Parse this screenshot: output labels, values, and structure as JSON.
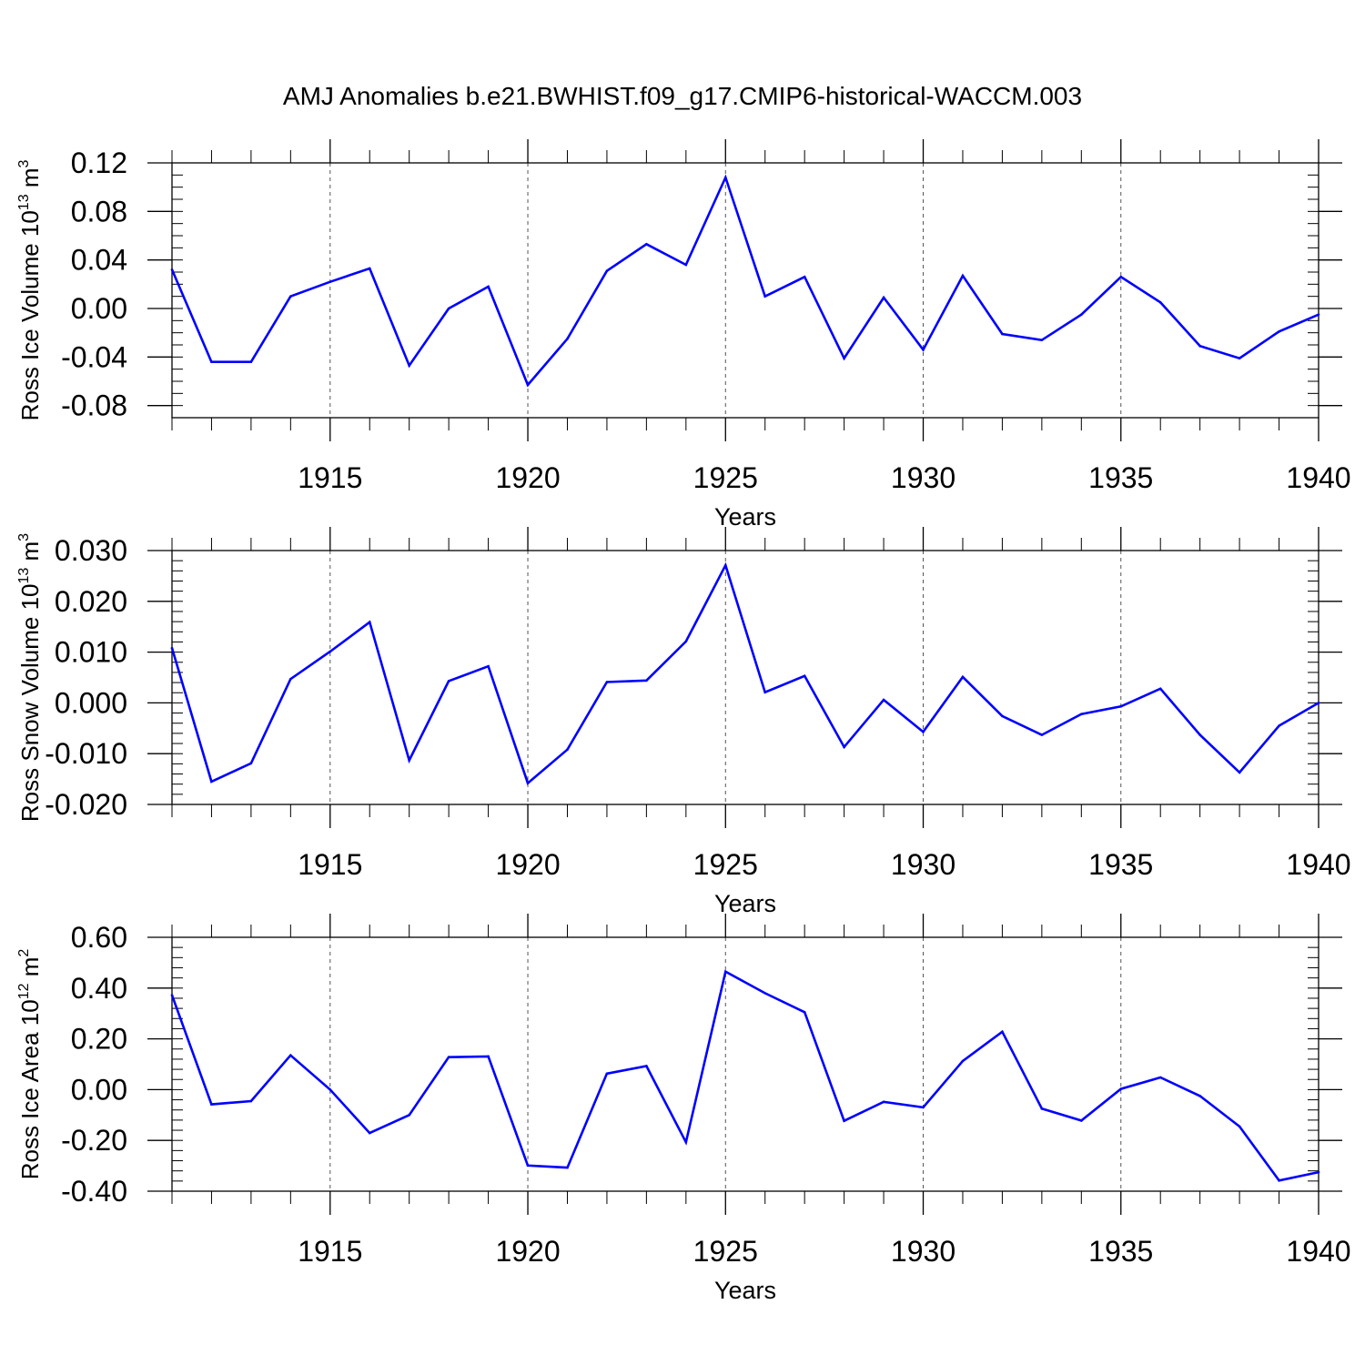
{
  "title": "AMJ Anomalies b.e21.BWHIST.f09_g17.CMIP6-historical-WACCM.003",
  "line_color": "#0000ff",
  "chart_data": [
    {
      "type": "line",
      "xlabel": "Years",
      "ylabel": "Ross Ice Volume 10^13 m^3",
      "ylabel_parts": {
        "base": "Ross Ice Volume 10",
        "exp": "13",
        "unit": " m",
        "unit_exp": "3"
      },
      "xlim": [
        1911,
        1940
      ],
      "ylim": [
        -0.09,
        0.12
      ],
      "x_ticks": [
        1915,
        1920,
        1925,
        1930,
        1935,
        1940
      ],
      "x_tick_labels": [
        "1915",
        "1920",
        "1925",
        "1930",
        "1935",
        "1940"
      ],
      "y_ticks": [
        -0.08,
        -0.04,
        0.0,
        0.04,
        0.08,
        0.12
      ],
      "y_tick_labels": [
        "-0.08",
        "-0.04",
        "0.00",
        "0.04",
        "0.08",
        "0.12"
      ],
      "y_minor_step": 0.01,
      "grid": "vertical dashed at major x ticks",
      "x": [
        1911,
        1912,
        1913,
        1914,
        1915,
        1916,
        1917,
        1918,
        1919,
        1920,
        1921,
        1922,
        1923,
        1924,
        1925,
        1926,
        1927,
        1928,
        1929,
        1930,
        1931,
        1932,
        1933,
        1934,
        1935,
        1936,
        1937,
        1938,
        1939,
        1940
      ],
      "values": [
        0.032,
        -0.044,
        -0.044,
        0.01,
        0.022,
        0.033,
        -0.047,
        0.0,
        0.018,
        -0.063,
        -0.025,
        0.031,
        0.053,
        0.036,
        0.108,
        0.01,
        0.026,
        -0.041,
        0.009,
        -0.034,
        0.027,
        -0.021,
        -0.026,
        -0.005,
        0.026,
        0.005,
        -0.031,
        -0.041,
        -0.019,
        -0.005
      ]
    },
    {
      "type": "line",
      "xlabel": "Years",
      "ylabel": "Ross Snow Volume 10^13 m^3",
      "ylabel_parts": {
        "base": "Ross Snow Volume 10",
        "exp": "13",
        "unit": " m",
        "unit_exp": "3"
      },
      "xlim": [
        1911,
        1940
      ],
      "ylim": [
        -0.02,
        0.03
      ],
      "x_ticks": [
        1915,
        1920,
        1925,
        1930,
        1935,
        1940
      ],
      "x_tick_labels": [
        "1915",
        "1920",
        "1925",
        "1930",
        "1935",
        "1940"
      ],
      "y_ticks": [
        -0.02,
        -0.01,
        0.0,
        0.01,
        0.02,
        0.03
      ],
      "y_tick_labels": [
        "-0.020",
        "-0.010",
        "0.000",
        "0.010",
        "0.020",
        "0.030"
      ],
      "y_minor_step": 0.002,
      "grid": "vertical dashed at major x ticks",
      "x": [
        1911,
        1912,
        1913,
        1914,
        1915,
        1916,
        1917,
        1918,
        1919,
        1920,
        1921,
        1922,
        1923,
        1924,
        1925,
        1926,
        1927,
        1928,
        1929,
        1930,
        1931,
        1932,
        1933,
        1934,
        1935,
        1936,
        1937,
        1938,
        1939,
        1940
      ],
      "values": [
        0.0108,
        -0.0155,
        -0.0119,
        0.0047,
        0.0101,
        0.0159,
        -0.0113,
        0.0043,
        0.0072,
        -0.0158,
        -0.0092,
        0.0041,
        0.0044,
        0.0121,
        0.0271,
        0.0021,
        0.0053,
        -0.0087,
        0.0006,
        -0.0057,
        0.0051,
        -0.0026,
        -0.0063,
        -0.0022,
        -0.0007,
        0.0028,
        -0.0063,
        -0.0137,
        -0.0045,
        0.0
      ]
    },
    {
      "type": "line",
      "xlabel": "Years",
      "ylabel": "Ross Ice Area 10^12 m^2",
      "ylabel_parts": {
        "base": "Ross Ice Area 10",
        "exp": "12",
        "unit": " m",
        "unit_exp": "2"
      },
      "xlim": [
        1911,
        1940
      ],
      "ylim": [
        -0.4,
        0.6
      ],
      "x_ticks": [
        1915,
        1920,
        1925,
        1930,
        1935,
        1940
      ],
      "x_tick_labels": [
        "1915",
        "1920",
        "1925",
        "1930",
        "1935",
        "1940"
      ],
      "y_ticks": [
        -0.4,
        -0.2,
        0.0,
        0.2,
        0.4,
        0.6
      ],
      "y_tick_labels": [
        "-0.40",
        "-0.20",
        "0.00",
        "0.20",
        "0.40",
        "0.60"
      ],
      "y_minor_step": 0.04,
      "grid": "vertical dashed at major x ticks",
      "x": [
        1911,
        1912,
        1913,
        1914,
        1915,
        1916,
        1917,
        1918,
        1919,
        1920,
        1921,
        1922,
        1923,
        1924,
        1925,
        1926,
        1927,
        1928,
        1929,
        1930,
        1931,
        1932,
        1933,
        1934,
        1935,
        1936,
        1937,
        1938,
        1939,
        1940
      ],
      "values": [
        0.372,
        -0.058,
        -0.045,
        0.135,
        0.0,
        -0.171,
        -0.1,
        0.128,
        0.131,
        -0.299,
        -0.307,
        0.063,
        0.093,
        -0.207,
        0.465,
        0.38,
        0.305,
        -0.123,
        -0.048,
        -0.07,
        0.113,
        0.228,
        -0.075,
        -0.122,
        0.003,
        0.048,
        -0.025,
        -0.145,
        -0.358,
        -0.325
      ]
    }
  ]
}
